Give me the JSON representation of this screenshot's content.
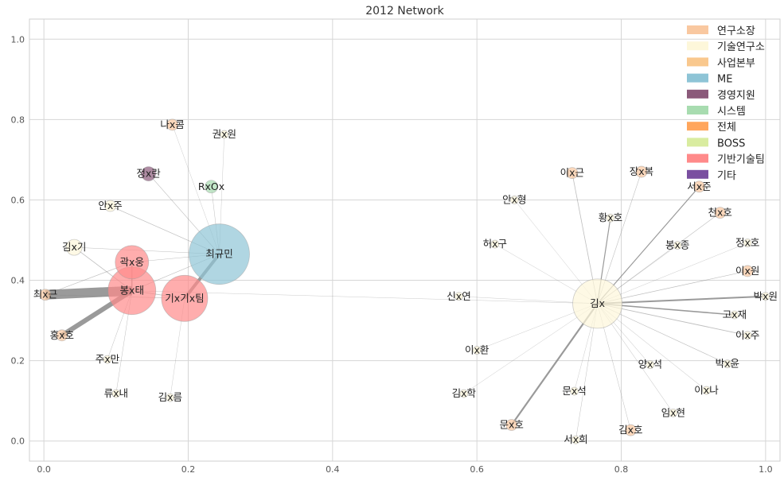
{
  "chart_data": {
    "type": "network",
    "title": "2012 Network",
    "xlim": [
      -0.02,
      1.02
    ],
    "ylim": [
      -0.05,
      1.05
    ],
    "xticks": [
      0.0,
      0.2,
      0.4,
      0.6,
      0.8,
      1.0
    ],
    "yticks": [
      0.0,
      0.2,
      0.4,
      0.6,
      0.8,
      1.0
    ],
    "xtick_labels": [
      "0.0",
      "0.2",
      "0.4",
      "0.6",
      "0.8",
      "1.0"
    ],
    "ytick_labels": [
      "0.0",
      "0.2",
      "0.4",
      "0.6",
      "0.8",
      "1.0"
    ],
    "legend_position": "top-right",
    "groups": [
      {
        "name": "연구소장",
        "color": "#f9c8a0"
      },
      {
        "name": "기술연구소",
        "color": "#fdf7da"
      },
      {
        "name": "사업본부",
        "color": "#f9c88e"
      },
      {
        "name": "ME",
        "color": "#8ec4d6"
      },
      {
        "name": "경영지원",
        "color": "#8b5a7a"
      },
      {
        "name": "시스템",
        "color": "#a8dcb0"
      },
      {
        "name": "전체",
        "color": "#ffa65c"
      },
      {
        "name": "BOSS",
        "color": "#d9eca0"
      },
      {
        "name": "기반기술팀",
        "color": "#ff8a8a"
      },
      {
        "name": "기타",
        "color": "#7a4fa0"
      }
    ],
    "nodes": [
      {
        "id": "최규민",
        "x": 0.243,
        "y": 0.465,
        "size": 38,
        "group": "ME"
      },
      {
        "id": "봉x태",
        "x": 0.122,
        "y": 0.374,
        "size": 30,
        "group": "기반기술팀"
      },
      {
        "id": "기x기x팀",
        "x": 0.195,
        "y": 0.355,
        "size": 29,
        "group": "기반기술팀"
      },
      {
        "id": "곽x웅",
        "x": 0.122,
        "y": 0.445,
        "size": 21,
        "group": "기반기술팀"
      },
      {
        "id": "김x",
        "x": 0.767,
        "y": 0.342,
        "size": 31,
        "group": "기술연구소"
      },
      {
        "id": "정x란",
        "x": 0.145,
        "y": 0.665,
        "size": 9,
        "group": "경영지원"
      },
      {
        "id": "RxOx",
        "x": 0.232,
        "y": 0.633,
        "size": 8,
        "group": "시스템"
      },
      {
        "id": "김x기",
        "x": 0.042,
        "y": 0.482,
        "size": 10,
        "group": "기술연구소"
      },
      {
        "id": "최x근",
        "x": 0.002,
        "y": 0.364,
        "size": 7,
        "group": "연구소장"
      },
      {
        "id": "홍x호",
        "x": 0.025,
        "y": 0.263,
        "size": 7,
        "group": "연구소장"
      },
      {
        "id": "나x콤",
        "x": 0.178,
        "y": 0.787,
        "size": 7,
        "group": "연구소장"
      },
      {
        "id": "권x원",
        "x": 0.25,
        "y": 0.763,
        "size": 5,
        "group": "기술연구소"
      },
      {
        "id": "안x주",
        "x": 0.092,
        "y": 0.585,
        "size": 7,
        "group": "기술연구소"
      },
      {
        "id": "주x만",
        "x": 0.088,
        "y": 0.203,
        "size": 5,
        "group": "기술연구소"
      },
      {
        "id": "류x내",
        "x": 0.1,
        "y": 0.118,
        "size": 5,
        "group": "기술연구소"
      },
      {
        "id": "김x름",
        "x": 0.175,
        "y": 0.108,
        "size": 5,
        "group": "기술연구소"
      },
      {
        "id": "이x근",
        "x": 0.732,
        "y": 0.667,
        "size": 7,
        "group": "연구소장"
      },
      {
        "id": "장x복",
        "x": 0.828,
        "y": 0.67,
        "size": 7,
        "group": "연구소장"
      },
      {
        "id": "서x준",
        "x": 0.908,
        "y": 0.633,
        "size": 7,
        "group": "연구소장"
      },
      {
        "id": "안x형",
        "x": 0.652,
        "y": 0.6,
        "size": 5,
        "group": "기술연구소"
      },
      {
        "id": "황x호",
        "x": 0.785,
        "y": 0.555,
        "size": 5,
        "group": "기술연구소"
      },
      {
        "id": "천x호",
        "x": 0.937,
        "y": 0.568,
        "size": 7,
        "group": "연구소장"
      },
      {
        "id": "허x구",
        "x": 0.625,
        "y": 0.49,
        "size": 5,
        "group": "기술연구소"
      },
      {
        "id": "봉x종",
        "x": 0.878,
        "y": 0.487,
        "size": 5,
        "group": "기술연구소"
      },
      {
        "id": "정x호",
        "x": 0.975,
        "y": 0.493,
        "size": 5,
        "group": "기술연구소"
      },
      {
        "id": "이x원",
        "x": 0.975,
        "y": 0.423,
        "size": 7,
        "group": "연구소장"
      },
      {
        "id": "신x연",
        "x": 0.575,
        "y": 0.36,
        "size": 5,
        "group": "기술연구소"
      },
      {
        "id": "박x원",
        "x": 1.0,
        "y": 0.36,
        "size": 5,
        "group": "기술연구소"
      },
      {
        "id": "고x재",
        "x": 0.957,
        "y": 0.314,
        "size": 5,
        "group": "기술연구소"
      },
      {
        "id": "이x주",
        "x": 0.975,
        "y": 0.263,
        "size": 5,
        "group": "기술연구소"
      },
      {
        "id": "이x환",
        "x": 0.6,
        "y": 0.226,
        "size": 5,
        "group": "기술연구소"
      },
      {
        "id": "양x석",
        "x": 0.84,
        "y": 0.19,
        "size": 5,
        "group": "기술연구소"
      },
      {
        "id": "박x윤",
        "x": 0.947,
        "y": 0.192,
        "size": 5,
        "group": "기술연구소"
      },
      {
        "id": "김x학",
        "x": 0.582,
        "y": 0.118,
        "size": 5,
        "group": "기술연구소"
      },
      {
        "id": "문x석",
        "x": 0.735,
        "y": 0.124,
        "size": 5,
        "group": "기술연구소"
      },
      {
        "id": "이x나",
        "x": 0.918,
        "y": 0.126,
        "size": 5,
        "group": "기술연구소"
      },
      {
        "id": "임x현",
        "x": 0.872,
        "y": 0.07,
        "size": 5,
        "group": "기술연구소"
      },
      {
        "id": "문x호",
        "x": 0.648,
        "y": 0.04,
        "size": 7,
        "group": "연구소장"
      },
      {
        "id": "김x호",
        "x": 0.813,
        "y": 0.027,
        "size": 7,
        "group": "연구소장"
      },
      {
        "id": "서x희",
        "x": 0.737,
        "y": 0.003,
        "size": 5,
        "group": "기술연구소"
      }
    ],
    "edges": [
      {
        "source": "봉x태",
        "target": "최x근",
        "weight": 12
      },
      {
        "source": "봉x태",
        "target": "홍x호",
        "weight": 6
      },
      {
        "source": "최규민",
        "target": "기x기x팀",
        "weight": 4
      },
      {
        "source": "김x",
        "target": "문x호",
        "weight": 2.2
      },
      {
        "source": "김x",
        "target": "박x원",
        "weight": 2
      },
      {
        "source": "김x",
        "target": "고x재",
        "weight": 1.5
      },
      {
        "source": "김x",
        "target": "서x준",
        "weight": 1.2
      },
      {
        "source": "김x",
        "target": "황x호",
        "weight": 1.2
      },
      {
        "source": "김x",
        "target": "이x근",
        "weight": 0.8
      },
      {
        "source": "김x",
        "target": "장x복",
        "weight": 0.6
      },
      {
        "source": "김x",
        "target": "천x호",
        "weight": 0.6
      },
      {
        "source": "김x",
        "target": "이x원",
        "weight": 0.7
      },
      {
        "source": "김x",
        "target": "이x주",
        "weight": 0.9
      },
      {
        "source": "김x",
        "target": "박x윤",
        "weight": 0.6
      },
      {
        "source": "김x",
        "target": "이x나",
        "weight": 0.5
      },
      {
        "source": "김x",
        "target": "임x현",
        "weight": 0.5
      },
      {
        "source": "김x",
        "target": "양x석",
        "weight": 0.5
      },
      {
        "source": "김x",
        "target": "김x호",
        "weight": 0.5
      },
      {
        "source": "김x",
        "target": "서x희",
        "weight": 0.5
      },
      {
        "source": "김x",
        "target": "문x석",
        "weight": 0.4
      },
      {
        "source": "김x",
        "target": "김x학",
        "weight": 0.4
      },
      {
        "source": "김x",
        "target": "이x환",
        "weight": 0.4
      },
      {
        "source": "김x",
        "target": "신x연",
        "weight": 0.4
      },
      {
        "source": "김x",
        "target": "허x구",
        "weight": 0.4
      },
      {
        "source": "김x",
        "target": "안x형",
        "weight": 0.4
      },
      {
        "source": "김x",
        "target": "봉x종",
        "weight": 0.4
      },
      {
        "source": "김x",
        "target": "정x호",
        "weight": 0.4
      },
      {
        "source": "김x",
        "target": "봉x태",
        "weight": 0.3
      },
      {
        "source": "최규민",
        "target": "정x란",
        "weight": 0.6
      },
      {
        "source": "최규민",
        "target": "안x주",
        "weight": 0.7
      },
      {
        "source": "최규민",
        "target": "김x기",
        "weight": 0.5
      },
      {
        "source": "최규민",
        "target": "RxOx",
        "weight": 0.5
      },
      {
        "source": "최규민",
        "target": "권x원",
        "weight": 0.4
      },
      {
        "source": "최규민",
        "target": "나x콤",
        "weight": 0.4
      },
      {
        "source": "최규민",
        "target": "곽x웅",
        "weight": 0.5
      },
      {
        "source": "최규민",
        "target": "봉x태",
        "weight": 0.6
      },
      {
        "source": "봉x태",
        "target": "곽x웅",
        "weight": 1.2
      },
      {
        "source": "봉x태",
        "target": "김x기",
        "weight": 0.8
      },
      {
        "source": "봉x태",
        "target": "주x만",
        "weight": 0.5
      },
      {
        "source": "봉x태",
        "target": "류x내",
        "weight": 0.5
      },
      {
        "source": "봉x태",
        "target": "기x기x팀",
        "weight": 0.8
      },
      {
        "source": "기x기x팀",
        "target": "김x름",
        "weight": 0.4
      },
      {
        "source": "기x기x팀",
        "target": "최x근",
        "weight": 0.6
      },
      {
        "source": "곽x웅",
        "target": "최x근",
        "weight": 0.6
      }
    ]
  }
}
